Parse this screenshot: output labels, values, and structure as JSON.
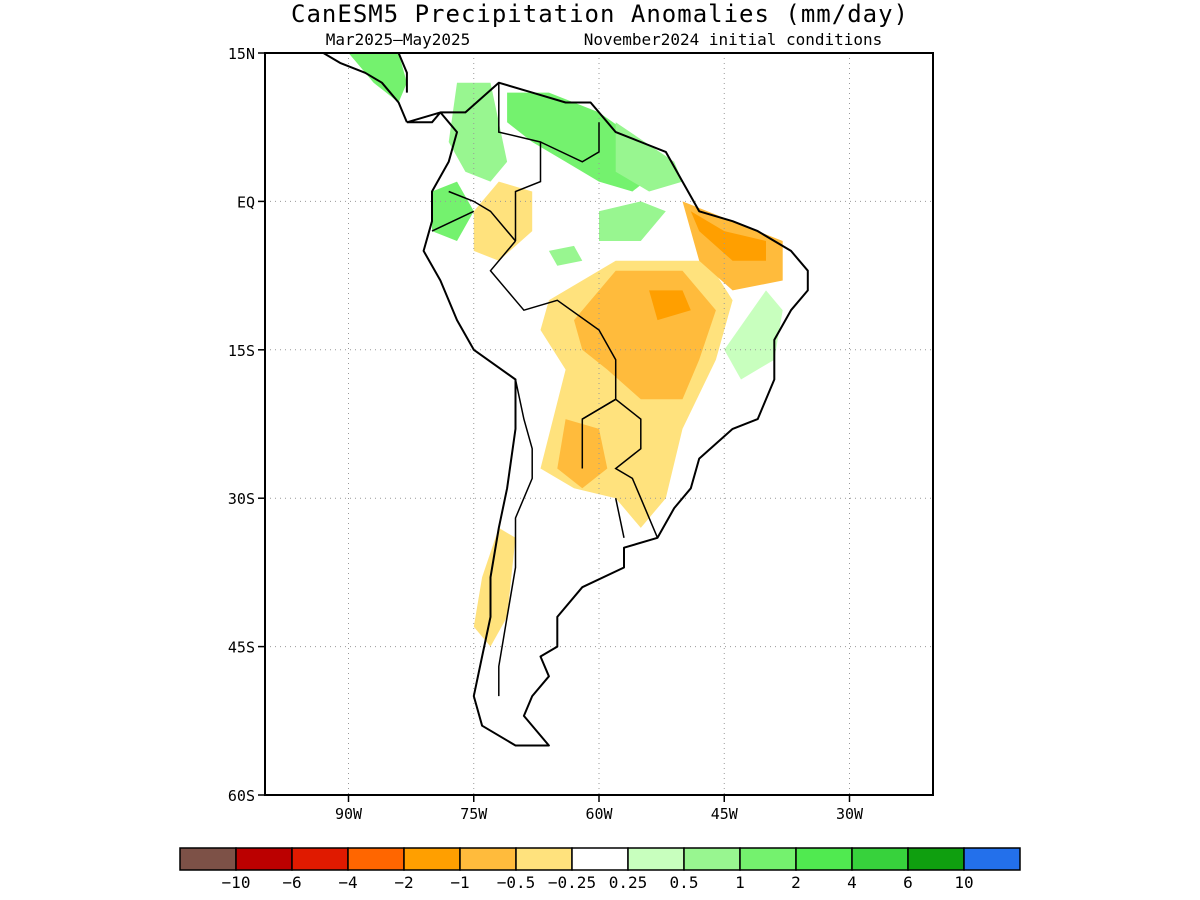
{
  "title": "CanESM5 Precipitation Anomalies (mm/day)",
  "period": "Mar2025–May2025",
  "init": "November2024 initial conditions",
  "map": {
    "lon_range": [
      -100,
      -20
    ],
    "lat_range": [
      -60,
      15
    ],
    "lon_ticks": [
      {
        "value": -90,
        "label": "90W"
      },
      {
        "value": -75,
        "label": "75W"
      },
      {
        "value": -60,
        "label": "60W"
      },
      {
        "value": -45,
        "label": "45W"
      },
      {
        "value": -30,
        "label": "30W"
      }
    ],
    "lat_ticks": [
      {
        "value": 15,
        "label": "15N"
      },
      {
        "value": 0,
        "label": "EQ"
      },
      {
        "value": -15,
        "label": "15S"
      },
      {
        "value": -30,
        "label": "30S"
      },
      {
        "value": -45,
        "label": "45S"
      },
      {
        "value": -60,
        "label": "60S"
      }
    ],
    "grid": true
  },
  "colorbar": {
    "colors": [
      "#7d5147",
      "#bb0000",
      "#e01a00",
      "#ff6600",
      "#ff9f00",
      "#ffbb3c",
      "#ffe27d",
      "#ffffff",
      "#c8ffbe",
      "#98f690",
      "#74f26e",
      "#50ea50",
      "#37d23c",
      "#0f9f0f",
      "#2370eb"
    ],
    "labels": [
      "−10",
      "−6",
      "−4",
      "−2",
      "−1",
      "−0.5",
      "−0.25",
      "0.25",
      "0.5",
      "1",
      "2",
      "4",
      "6",
      "10"
    ]
  },
  "regions": [
    {
      "name": "andes-coast-wet",
      "color": "#98f690",
      "points": [
        [
          -77,
          12
        ],
        [
          -73,
          12
        ],
        [
          -72,
          8
        ],
        [
          -71,
          4
        ],
        [
          -73,
          2
        ],
        [
          -76,
          3
        ],
        [
          -78,
          6
        ]
      ]
    },
    {
      "name": "venezuela-wet",
      "color": "#74f26e",
      "points": [
        [
          -71,
          11
        ],
        [
          -66,
          11
        ],
        [
          -60,
          9
        ],
        [
          -55,
          6
        ],
        [
          -53,
          3
        ],
        [
          -56,
          1
        ],
        [
          -60,
          2
        ],
        [
          -64,
          4
        ],
        [
          -68,
          6
        ],
        [
          -71,
          8
        ]
      ]
    },
    {
      "name": "guianas-wet",
      "color": "#98f690",
      "points": [
        [
          -58,
          8
        ],
        [
          -51,
          4
        ],
        [
          -50,
          2
        ],
        [
          -54,
          1
        ],
        [
          -58,
          3
        ]
      ]
    },
    {
      "name": "ecuador-wet",
      "color": "#74f26e",
      "points": [
        [
          -80,
          1
        ],
        [
          -77,
          2
        ],
        [
          -75,
          -1
        ],
        [
          -77,
          -4
        ],
        [
          -80,
          -3
        ]
      ]
    },
    {
      "name": "central-america-wet",
      "color": "#74f26e",
      "points": [
        [
          -90,
          15
        ],
        [
          -84,
          15
        ],
        [
          -83,
          12
        ],
        [
          -84,
          10
        ],
        [
          -87,
          12
        ],
        [
          -89,
          14
        ]
      ]
    },
    {
      "name": "amazon-green-1",
      "color": "#98f690",
      "points": [
        [
          -60,
          -1
        ],
        [
          -55,
          0
        ],
        [
          -52,
          -1
        ],
        [
          -55,
          -4
        ],
        [
          -60,
          -4
        ]
      ]
    },
    {
      "name": "amazon-green-2",
      "color": "#98f690",
      "points": [
        [
          -66,
          -5
        ],
        [
          -63,
          -4.5
        ],
        [
          -62,
          -6
        ],
        [
          -65,
          -6.5
        ]
      ]
    },
    {
      "name": "ne-brazil-green",
      "color": "#c8ffbe",
      "points": [
        [
          -45,
          -15
        ],
        [
          -40,
          -9
        ],
        [
          -38,
          -11
        ],
        [
          -39,
          -16
        ],
        [
          -43,
          -18
        ]
      ]
    },
    {
      "name": "colombia-dry",
      "color": "#ffe27d",
      "points": [
        [
          -75,
          -1
        ],
        [
          -72,
          2
        ],
        [
          -68,
          1
        ],
        [
          -68,
          -3
        ],
        [
          -72,
          -6
        ],
        [
          -75,
          -5
        ]
      ]
    },
    {
      "name": "interior-dry",
      "color": "#ffe27d",
      "points": [
        [
          -66,
          -10
        ],
        [
          -58,
          -6
        ],
        [
          -47,
          -6
        ],
        [
          -44,
          -10
        ],
        [
          -46,
          -16
        ],
        [
          -50,
          -23
        ],
        [
          -52,
          -30
        ],
        [
          -55,
          -33
        ],
        [
          -58,
          -30
        ],
        [
          -63,
          -29
        ],
        [
          -67,
          -27
        ],
        [
          -64,
          -17
        ],
        [
          -67,
          -13
        ]
      ]
    },
    {
      "name": "interior-moderate",
      "color": "#ffbb3c",
      "points": [
        [
          -63,
          -12
        ],
        [
          -58,
          -7
        ],
        [
          -50,
          -7
        ],
        [
          -46,
          -11
        ],
        [
          -48,
          -16
        ],
        [
          -50,
          -20
        ],
        [
          -55,
          -20
        ],
        [
          -59,
          -17
        ],
        [
          -62,
          -15
        ]
      ]
    },
    {
      "name": "paraguay-dry",
      "color": "#ffbb3c",
      "points": [
        [
          -64,
          -22
        ],
        [
          -60,
          -23
        ],
        [
          -59,
          -27
        ],
        [
          -62,
          -29
        ],
        [
          -65,
          -27
        ]
      ]
    },
    {
      "name": "ne-brazil-dry",
      "color": "#ffbb3c",
      "points": [
        [
          -50,
          0
        ],
        [
          -44,
          -2
        ],
        [
          -38,
          -4
        ],
        [
          -38,
          -8
        ],
        [
          -44,
          -9
        ],
        [
          -48,
          -6
        ]
      ]
    },
    {
      "name": "ne-brazil-core",
      "color": "#ff9f00",
      "points": [
        [
          -49,
          -1
        ],
        [
          -45,
          -3
        ],
        [
          -40,
          -4
        ],
        [
          -40,
          -6
        ],
        [
          -44,
          -6
        ],
        [
          -48,
          -3
        ]
      ]
    },
    {
      "name": "mato-grosso-core",
      "color": "#ff9f00",
      "points": [
        [
          -54,
          -9
        ],
        [
          -50,
          -9
        ],
        [
          -49,
          -11
        ],
        [
          -53,
          -12
        ]
      ]
    },
    {
      "name": "chile-dry",
      "color": "#ffe27d",
      "points": [
        [
          -72,
          -33
        ],
        [
          -70,
          -34
        ],
        [
          -71,
          -42
        ],
        [
          -73,
          -45
        ],
        [
          -75,
          -43
        ],
        [
          -74,
          -38
        ]
      ]
    }
  ],
  "coastlines": [
    [
      [
        -83,
        8
      ],
      [
        -79,
        9
      ],
      [
        -76,
        9
      ],
      [
        -72,
        12
      ],
      [
        -68,
        11
      ],
      [
        -64,
        10
      ],
      [
        -61,
        10
      ],
      [
        -58,
        7
      ],
      [
        -55,
        6
      ],
      [
        -52,
        5
      ],
      [
        -50,
        2
      ],
      [
        -48,
        -1
      ],
      [
        -44,
        -2
      ],
      [
        -41,
        -3
      ],
      [
        -37,
        -5
      ],
      [
        -35,
        -7
      ],
      [
        -35,
        -9
      ],
      [
        -37,
        -11
      ],
      [
        -39,
        -14
      ],
      [
        -39,
        -18
      ],
      [
        -41,
        -22
      ],
      [
        -44,
        -23
      ],
      [
        -48,
        -26
      ],
      [
        -49,
        -29
      ],
      [
        -51,
        -31
      ],
      [
        -53,
        -34
      ],
      [
        -57,
        -35
      ],
      [
        -57,
        -37
      ],
      [
        -62,
        -39
      ],
      [
        -65,
        -42
      ],
      [
        -65,
        -45
      ],
      [
        -67,
        -46
      ],
      [
        -66,
        -48
      ],
      [
        -68,
        -50
      ],
      [
        -69,
        -52
      ],
      [
        -66,
        -55
      ],
      [
        -70,
        -55
      ],
      [
        -74,
        -53
      ],
      [
        -75,
        -50
      ],
      [
        -74,
        -46
      ],
      [
        -73,
        -42
      ],
      [
        -73,
        -38
      ],
      [
        -72,
        -33
      ],
      [
        -71,
        -29
      ],
      [
        -70,
        -23
      ],
      [
        -70,
        -18
      ],
      [
        -75,
        -15
      ],
      [
        -77,
        -12
      ],
      [
        -79,
        -8
      ],
      [
        -81,
        -5
      ],
      [
        -80,
        -2
      ],
      [
        -80,
        1
      ],
      [
        -78,
        4
      ],
      [
        -77,
        7
      ],
      [
        -79,
        9
      ],
      [
        -80,
        8
      ],
      [
        -83,
        8
      ]
    ],
    [
      [
        -83,
        8
      ],
      [
        -84,
        10
      ],
      [
        -86,
        12
      ],
      [
        -88,
        13
      ],
      [
        -91,
        14
      ],
      [
        -93,
        15
      ]
    ],
    [
      [
        -88,
        15
      ],
      [
        -86,
        16
      ],
      [
        -84,
        15
      ],
      [
        -83,
        13
      ],
      [
        -83,
        11
      ]
    ]
  ],
  "borders": [
    [
      [
        -72,
        12
      ],
      [
        -72,
        7
      ],
      [
        -67,
        6
      ],
      [
        -67,
        2
      ],
      [
        -70,
        1
      ],
      [
        -70,
        -4
      ]
    ],
    [
      [
        -67,
        6
      ],
      [
        -62,
        4
      ],
      [
        -60,
        5
      ],
      [
        -60,
        8
      ]
    ],
    [
      [
        -78,
        1
      ],
      [
        -75,
        0
      ],
      [
        -73,
        -1
      ],
      [
        -70,
        -4
      ]
    ],
    [
      [
        -80,
        -3
      ],
      [
        -75,
        -1
      ]
    ],
    [
      [
        -70,
        -4
      ],
      [
        -73,
        -7
      ],
      [
        -70,
        -10
      ],
      [
        -69,
        -11
      ],
      [
        -65,
        -10
      ],
      [
        -60,
        -13
      ],
      [
        -58,
        -16
      ],
      [
        -58,
        -20
      ],
      [
        -62,
        -22
      ],
      [
        -62,
        -27
      ]
    ],
    [
      [
        -70,
        -18
      ],
      [
        -69,
        -22
      ],
      [
        -68,
        -25
      ],
      [
        -68,
        -28
      ],
      [
        -70,
        -32
      ],
      [
        -70,
        -37
      ],
      [
        -71,
        -42
      ],
      [
        -72,
        -47
      ],
      [
        -72,
        -50
      ]
    ],
    [
      [
        -62,
        -22
      ],
      [
        -58,
        -20
      ],
      [
        -55,
        -22
      ],
      [
        -55,
        -25
      ],
      [
        -58,
        -27
      ],
      [
        -56,
        -28
      ],
      [
        -55,
        -30
      ],
      [
        -53,
        -34
      ]
    ],
    [
      [
        -58,
        -30
      ],
      [
        -57,
        -34
      ]
    ]
  ]
}
